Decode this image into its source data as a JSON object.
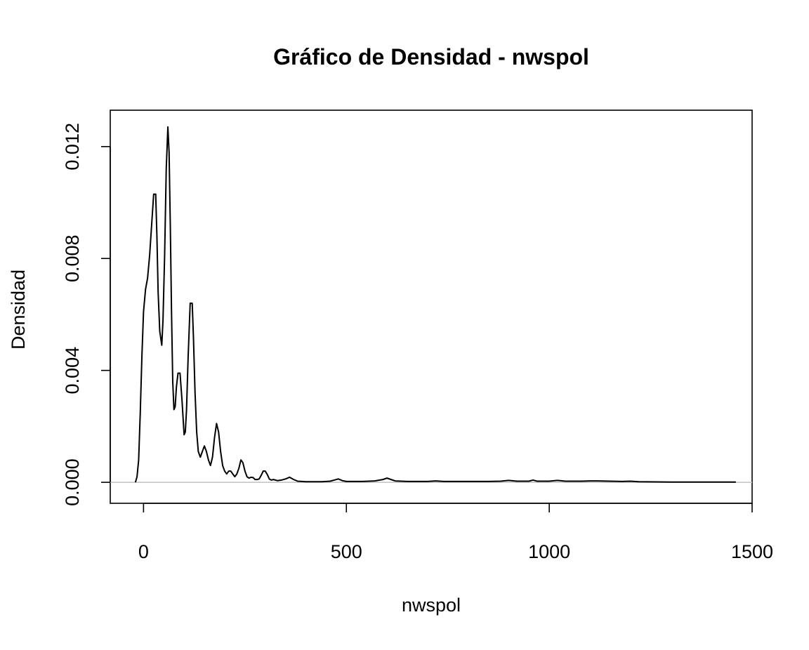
{
  "chart_data": {
    "type": "line",
    "title": "Gráfico de Densidad - nwspol",
    "xlabel": "nwspol",
    "ylabel": "Densidad",
    "xlim": [
      -82,
      1500
    ],
    "ylim": [
      -0.00075,
      0.0133
    ],
    "x_ticks": [
      0,
      500,
      1000,
      1500
    ],
    "x_tick_labels": [
      "0",
      "500",
      "1000",
      "1500"
    ],
    "y_ticks": [
      0.0,
      0.004,
      0.008,
      0.012
    ],
    "y_tick_labels": [
      "0.000",
      "0.004",
      "0.008",
      "0.012"
    ],
    "grid": false,
    "legend": "none",
    "zero_line_color": "#c0c0c0",
    "line_color": "#000000",
    "series": [
      {
        "x": [
          -20,
          -16,
          -12,
          -8,
          -4,
          0,
          5,
          10,
          15,
          20,
          25,
          30,
          33,
          36,
          40,
          45,
          48,
          52,
          56,
          60,
          63,
          66,
          69,
          72,
          75,
          78,
          81,
          85,
          90,
          95,
          100,
          103,
          106,
          110,
          115,
          120,
          123,
          127,
          131,
          135,
          140,
          145,
          150,
          155,
          160,
          165,
          170,
          175,
          180,
          185,
          190,
          195,
          200,
          205,
          210,
          215,
          220,
          225,
          230,
          235,
          240,
          245,
          250,
          255,
          260,
          265,
          270,
          275,
          280,
          285,
          290,
          295,
          300,
          305,
          310,
          315,
          320,
          330,
          340,
          350,
          360,
          370,
          380,
          400,
          420,
          440,
          460,
          470,
          480,
          490,
          500,
          540,
          570,
          590,
          600,
          610,
          620,
          650,
          700,
          720,
          740,
          780,
          850,
          880,
          900,
          920,
          950,
          960,
          970,
          1000,
          1020,
          1040,
          1080,
          1100,
          1120,
          1180,
          1200,
          1220,
          1300,
          1400,
          1460
        ],
        "y": [
          0.0,
          0.0002,
          0.0008,
          0.0025,
          0.0045,
          0.0061,
          0.0069,
          0.0073,
          0.0081,
          0.0092,
          0.0103,
          0.0103,
          0.0088,
          0.0068,
          0.0054,
          0.0049,
          0.0058,
          0.0081,
          0.0112,
          0.0127,
          0.0118,
          0.0092,
          0.0061,
          0.0036,
          0.0026,
          0.0027,
          0.0034,
          0.0039,
          0.0039,
          0.0029,
          0.0017,
          0.0018,
          0.0026,
          0.0045,
          0.0064,
          0.0064,
          0.0052,
          0.0032,
          0.0018,
          0.0011,
          0.0009,
          0.0011,
          0.0013,
          0.0011,
          0.0008,
          0.0006,
          0.0009,
          0.0016,
          0.0021,
          0.0018,
          0.0011,
          0.0006,
          0.0004,
          0.0003,
          0.0004,
          0.0004,
          0.0003,
          0.0002,
          0.0003,
          0.0005,
          0.0008,
          0.0007,
          0.0004,
          0.0002,
          0.00015,
          0.00018,
          0.00017,
          0.0001,
          0.0001,
          0.00012,
          0.00025,
          0.0004,
          0.0004,
          0.00028,
          0.00012,
          8e-05,
          0.0001,
          6e-05,
          8e-05,
          0.00012,
          0.00018,
          0.0001,
          4e-05,
          2e-05,
          2e-05,
          2e-05,
          4e-05,
          8e-05,
          0.00012,
          6e-05,
          3e-05,
          3e-05,
          5e-05,
          0.0001,
          0.00015,
          0.0001,
          5e-05,
          3e-05,
          3e-05,
          5e-05,
          3e-05,
          3e-05,
          3e-05,
          4e-05,
          7e-05,
          4e-05,
          4e-05,
          8e-05,
          4e-05,
          4e-05,
          7e-05,
          4e-05,
          4e-05,
          5e-05,
          5e-05,
          3e-05,
          4e-05,
          2e-05,
          1e-05,
          1e-05,
          1e-05
        ]
      }
    ]
  }
}
